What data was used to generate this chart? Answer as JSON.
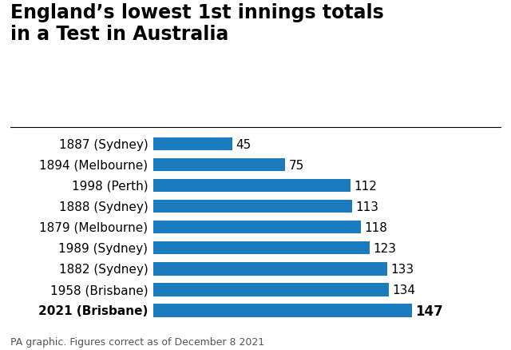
{
  "title": "England’s lowest 1st innings totals\nin a Test in Australia",
  "categories": [
    "1887 (Sydney)",
    "1894 (Melbourne)",
    "1998 (Perth)",
    "1888 (Sydney)",
    "1879 (Melbourne)",
    "1989 (Sydney)",
    "1882 (Sydney)",
    "1958 (Brisbane)",
    "2021 (Brisbane)"
  ],
  "values": [
    45,
    75,
    112,
    113,
    118,
    123,
    133,
    134,
    147
  ],
  "bar_color": "#1a7bbf",
  "footnote": "PA graphic. Figures correct as of December 8 2021",
  "xlim": [
    0,
    180
  ],
  "background_color": "#ffffff",
  "title_fontsize": 17,
  "label_fontsize": 11,
  "value_fontsize": 11,
  "footnote_fontsize": 9,
  "bar_height": 0.62
}
